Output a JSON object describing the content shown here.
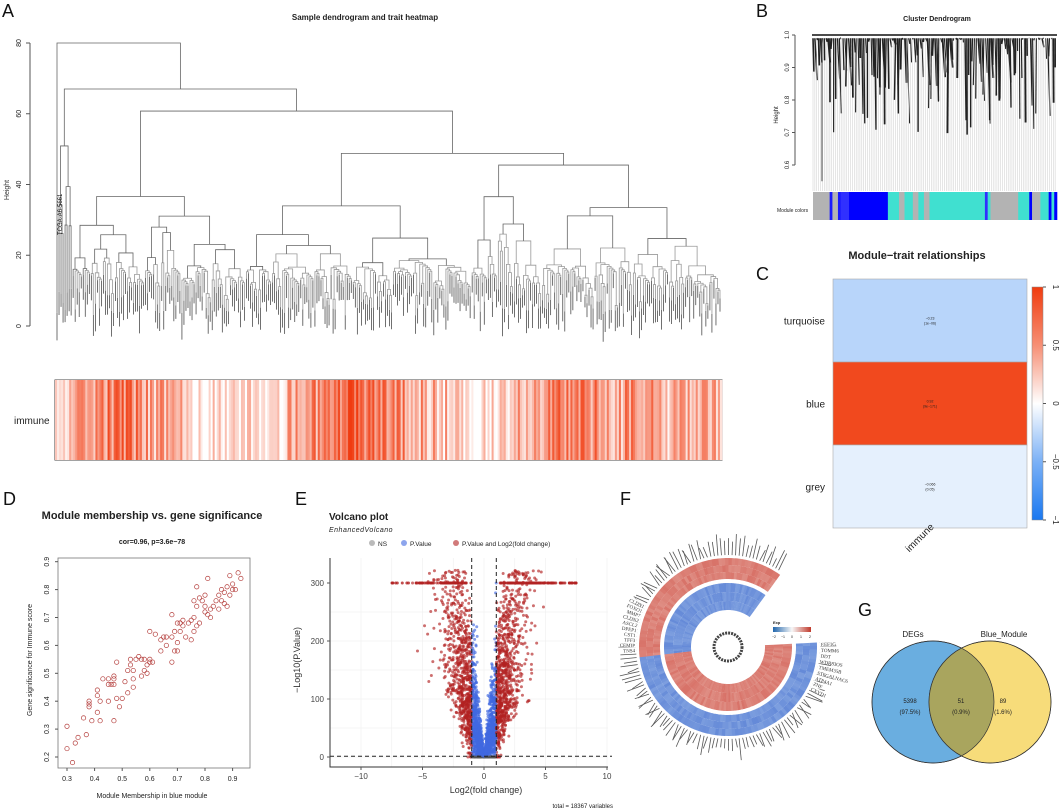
{
  "panels": {
    "A": "A",
    "B": "B",
    "C": "C",
    "D": "D",
    "E": "E",
    "F": "F",
    "G": "G"
  },
  "chart_data": [
    {
      "id": "A",
      "type": "dendrogram+heatmap",
      "title": "Sample dendrogram and trait heatmap",
      "ylabel": "Height",
      "yticks": [
        0,
        20,
        40,
        60,
        80
      ],
      "ylim": [
        0,
        82
      ],
      "root_height": 80,
      "second_height": 67,
      "leaf_label_example": "TCGA-A6-5661",
      "n_leaves": 330,
      "trait_row_label": "immune",
      "trait_color": "#ff3b10"
    },
    {
      "id": "B",
      "type": "dendrogram",
      "title": "Cluster Dendrogram",
      "ylabel": "Height",
      "yticks": [
        "0.6",
        "0.7",
        "0.8",
        "0.9",
        "1.0"
      ],
      "ylim": [
        0.53,
        1.0
      ],
      "module_label": "Module colors",
      "module_segments": [
        [
          "#b3b3b3",
          6
        ],
        [
          "#1a1aff",
          1
        ],
        [
          "#b3b3b3",
          2
        ],
        [
          "#1a1aff",
          1
        ],
        [
          "#3030ff",
          3
        ],
        [
          "#0000ff",
          14
        ],
        [
          "#40e0d0",
          4
        ],
        [
          "#b3b3b3",
          2
        ],
        [
          "#40e0d0",
          3
        ],
        [
          "#b3b3b3",
          2
        ],
        [
          "#40e0d0",
          2
        ],
        [
          "#b3b3b3",
          2
        ],
        [
          "#40e0d0",
          20
        ],
        [
          "#3030ff",
          1
        ],
        [
          "#40e0d0",
          1
        ],
        [
          "#b3b3b3",
          10
        ],
        [
          "#40e0d0",
          4
        ],
        [
          "#0000ff",
          1
        ],
        [
          "#b3b3b3",
          3
        ],
        [
          "#40e0d0",
          3
        ],
        [
          "#0000ff",
          1
        ],
        [
          "#40e0d0",
          1
        ],
        [
          "#0000ff",
          1
        ]
      ]
    },
    {
      "id": "C",
      "type": "heatmap",
      "title": "Module−trait relationships",
      "rows": [
        "turquoise",
        "blue",
        "grey"
      ],
      "columns": [
        "immune"
      ],
      "values": [
        -0.23,
        0.92,
        -0.066
      ],
      "value_labels": [
        "−0.23",
        "0.92",
        "−0.066"
      ],
      "p_labels": [
        "(1e−06)",
        "(9e−171)",
        "(0.05)"
      ],
      "colorbar_ticks": [
        "−1",
        "−0.5",
        "0",
        "0.5",
        "1"
      ],
      "colorbar_values": [
        -1,
        -0.5,
        0,
        0.5,
        1
      ],
      "low_color": "#1a78f0",
      "high_color": "#f03c0f"
    },
    {
      "id": "D",
      "type": "scatter",
      "title": "Module membership vs. gene significance",
      "subtitle": "cor=0.96, p=3.6e−78",
      "xlabel": "Module Membership in blue module",
      "ylabel": "Gene significance for Immune score",
      "xticks": [
        "0.3",
        "0.4",
        "0.5",
        "0.6",
        "0.7",
        "0.8",
        "0.9"
      ],
      "yticks": [
        "0.2",
        "0.3",
        "0.4",
        "0.5",
        "0.6",
        "0.7",
        "0.8",
        "0.9"
      ],
      "xlim": [
        0.28,
        0.95
      ],
      "ylim": [
        0.16,
        0.92
      ],
      "color": "#b5403e",
      "x": [
        0.3,
        0.3,
        0.32,
        0.33,
        0.34,
        0.36,
        0.37,
        0.38,
        0.38,
        0.38,
        0.39,
        0.41,
        0.41,
        0.41,
        0.42,
        0.42,
        0.43,
        0.45,
        0.45,
        0.45,
        0.46,
        0.47,
        0.47,
        0.47,
        0.47,
        0.48,
        0.48,
        0.49,
        0.5,
        0.51,
        0.52,
        0.52,
        0.53,
        0.53,
        0.54,
        0.54,
        0.54,
        0.55,
        0.56,
        0.57,
        0.57,
        0.58,
        0.58,
        0.59,
        0.59,
        0.6,
        0.6,
        0.6,
        0.61,
        0.62,
        0.64,
        0.64,
        0.65,
        0.66,
        0.66,
        0.68,
        0.68,
        0.68,
        0.69,
        0.69,
        0.7,
        0.7,
        0.7,
        0.71,
        0.71,
        0.72,
        0.72,
        0.73,
        0.74,
        0.75,
        0.75,
        0.76,
        0.76,
        0.76,
        0.77,
        0.77,
        0.77,
        0.78,
        0.78,
        0.79,
        0.8,
        0.8,
        0.8,
        0.81,
        0.81,
        0.82,
        0.82,
        0.83,
        0.84,
        0.85,
        0.85,
        0.86,
        0.86,
        0.87,
        0.87,
        0.88,
        0.88,
        0.89,
        0.89,
        0.9,
        0.9,
        0.91,
        0.92,
        0.93
      ],
      "y": [
        0.31,
        0.23,
        0.18,
        0.25,
        0.27,
        0.34,
        0.28,
        0.39,
        0.4,
        0.38,
        0.33,
        0.36,
        0.42,
        0.44,
        0.4,
        0.33,
        0.48,
        0.4,
        0.46,
        0.48,
        0.46,
        0.49,
        0.33,
        0.48,
        0.46,
        0.41,
        0.54,
        0.38,
        0.41,
        0.47,
        0.43,
        0.51,
        0.55,
        0.53,
        0.51,
        0.45,
        0.48,
        0.55,
        0.56,
        0.49,
        0.55,
        0.51,
        0.55,
        0.5,
        0.53,
        0.55,
        0.54,
        0.65,
        0.54,
        0.64,
        0.62,
        0.58,
        0.63,
        0.6,
        0.63,
        0.54,
        0.71,
        0.63,
        0.58,
        0.65,
        0.61,
        0.58,
        0.68,
        0.65,
        0.68,
        0.69,
        0.67,
        0.63,
        0.68,
        0.62,
        0.69,
        0.65,
        0.7,
        0.76,
        0.67,
        0.74,
        0.81,
        0.68,
        0.77,
        0.76,
        0.72,
        0.74,
        0.78,
        0.84,
        0.71,
        0.73,
        0.7,
        0.74,
        0.76,
        0.78,
        0.73,
        0.8,
        0.76,
        0.79,
        0.75,
        0.81,
        0.74,
        0.85,
        0.78,
        0.8,
        0.82,
        0.8,
        0.86,
        0.84
      ]
    },
    {
      "id": "E",
      "type": "scatter",
      "title": "Volcano plot",
      "subtitle": "EnhancedVolcano",
      "legend": [
        "NS",
        "P.Value",
        "P.Value and Log2(fold change)"
      ],
      "legend_colors": [
        "#8c8c8c",
        "#4169e1",
        "#b22222"
      ],
      "legend_placement": "top",
      "xlabel": "Log2(fold change)",
      "ylabel": "−Log10(P.Value)",
      "xticks": [
        "−10",
        "−5",
        "0",
        "5",
        "10"
      ],
      "xtick_values": [
        -10,
        -5,
        0,
        5,
        10
      ],
      "yticks": [
        "0",
        "100",
        "200",
        "300"
      ],
      "ytick_values": [
        0,
        100,
        200,
        300
      ],
      "xlim": [
        -12.4,
        10.6
      ],
      "ylim": [
        -15,
        345
      ],
      "fc_cutoff": 1,
      "p_cutoff_log10": 1.3,
      "y_cap": 300,
      "caption": "total = 18367 variables"
    },
    {
      "id": "F",
      "type": "circular-heatmap",
      "legend_title": "Exp",
      "legend_ticks": [
        "−2",
        "−1",
        "0",
        "1",
        "2"
      ],
      "gene_labels_right": [
        "EEF1G",
        "TOMM6",
        "DDT",
        "WDR83OS",
        "TMEM35B",
        "ST6GALNAC6",
        "ATP4A1",
        "ZNF",
        "CXYD1"
      ],
      "gene_labels_left": [
        "CLDN1",
        "FOXQ1",
        "MMP7",
        "CLDN2",
        "ASCL2",
        "DPEP1",
        "CST1",
        "TFF3",
        "CEMIP",
        "TNS4"
      ]
    },
    {
      "id": "G",
      "type": "venn",
      "sets": [
        "DEGs",
        "Blue_Module"
      ],
      "counts": {
        "DEGs_only": "5398",
        "overlap": "51",
        "Blue_only": "89"
      },
      "percents": {
        "DEGs_only": "(97.5%)",
        "overlap": "(0.9%)",
        "Blue_only": "(1.6%)"
      },
      "colors": {
        "left": "#6aaee0",
        "right": "#f7dc7a",
        "overlap": "#a9a55e"
      }
    }
  ]
}
